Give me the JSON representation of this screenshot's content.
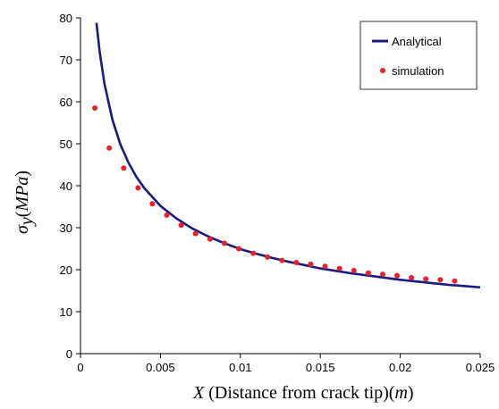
{
  "chart_data": {
    "type": "line",
    "x_title": {
      "var": "X",
      "text": " (Distance from crack tip)(",
      "unit": "m",
      "close": ")"
    },
    "y_title": {
      "var": "σ",
      "sub": "y",
      "open": "(",
      "unit": "MPa",
      "close": ")"
    },
    "xlim": [
      0,
      0.025
    ],
    "ylim": [
      0,
      80
    ],
    "x_ticks": [
      {
        "value": 0,
        "label": "0"
      },
      {
        "value": 0.005,
        "label": "0.005"
      },
      {
        "value": 0.01,
        "label": "0.01"
      },
      {
        "value": 0.015,
        "label": "0.015"
      },
      {
        "value": 0.02,
        "label": "0.02"
      },
      {
        "value": 0.025,
        "label": "0.025"
      }
    ],
    "y_ticks": [
      {
        "value": 0,
        "label": "0"
      },
      {
        "value": 10,
        "label": "10"
      },
      {
        "value": 20,
        "label": "20"
      },
      {
        "value": 30,
        "label": "30"
      },
      {
        "value": 40,
        "label": "40"
      },
      {
        "value": 50,
        "label": "50"
      },
      {
        "value": 60,
        "label": "60"
      },
      {
        "value": 70,
        "label": "70"
      },
      {
        "value": 80,
        "label": "80"
      }
    ],
    "grid": false,
    "legend_position": "top-right",
    "series": [
      {
        "name": "Analytical",
        "kind": "line",
        "color": "#1a1a80",
        "x": [
          0.001,
          0.0012,
          0.0015,
          0.002,
          0.0025,
          0.003,
          0.0035,
          0.004,
          0.005,
          0.006,
          0.007,
          0.008,
          0.009,
          0.01,
          0.011,
          0.012,
          0.013,
          0.014,
          0.015,
          0.016,
          0.017,
          0.018,
          0.019,
          0.02,
          0.021,
          0.022,
          0.023,
          0.024,
          0.025
        ],
        "y": [
          78.8,
          71.9,
          64.3,
          55.7,
          49.8,
          45.5,
          42.1,
          39.4,
          35.2,
          32.2,
          29.8,
          27.9,
          26.3,
          24.9,
          23.8,
          22.8,
          21.9,
          21.1,
          20.3,
          19.7,
          19.1,
          18.6,
          18.1,
          17.6,
          17.2,
          16.8,
          16.4,
          16.1,
          15.8
        ]
      },
      {
        "name": "simulation",
        "kind": "scatter",
        "color": "#e8202a",
        "x": [
          0.0009,
          0.0018,
          0.0027,
          0.0036,
          0.0045,
          0.0054,
          0.0063,
          0.0072,
          0.0081,
          0.009,
          0.0099,
          0.0108,
          0.0117,
          0.0126,
          0.0135,
          0.0144,
          0.0153,
          0.0162,
          0.0171,
          0.018,
          0.0189,
          0.0198,
          0.0207,
          0.0216,
          0.0225,
          0.0234
        ],
        "y": [
          58.5,
          49,
          44.2,
          39.5,
          35.7,
          33,
          30.6,
          28.6,
          27.3,
          26.3,
          25,
          23.9,
          23,
          22.2,
          21.7,
          21.3,
          20.8,
          20.3,
          19.8,
          19.2,
          18.9,
          18.6,
          18.1,
          17.8,
          17.6,
          17.3
        ]
      }
    ]
  }
}
